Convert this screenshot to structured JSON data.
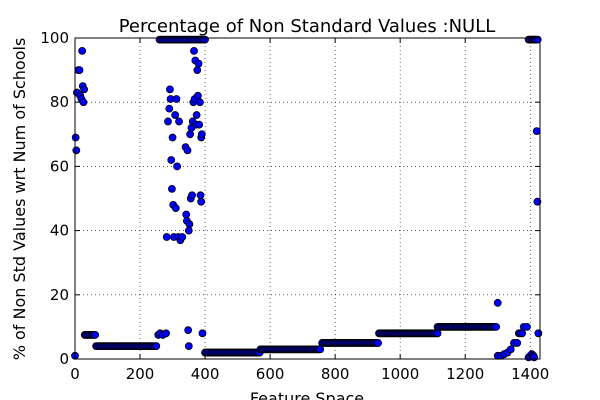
{
  "chart_data": {
    "type": "scatter",
    "title": "Percentage of Non Standard Values :NULL",
    "xlabel": "Feature Space",
    "ylabel": "% of Non Std Values wrt Num of Schools",
    "xlim": [
      0,
      1430
    ],
    "ylim": [
      0,
      100
    ],
    "xticks": [
      "0",
      "200",
      "400",
      "600",
      "800",
      "1000",
      "1200",
      "1400"
    ],
    "xtick_values": [
      0,
      200,
      400,
      600,
      800,
      1000,
      1200,
      1400
    ],
    "yticks": [
      "0",
      "20",
      "40",
      "60",
      "80",
      "100"
    ],
    "ytick_values": [
      0,
      20,
      40,
      60,
      80,
      100
    ],
    "grid": true,
    "marker_color": "#0000ff",
    "segments": [
      {
        "x_start": 65,
        "x_end": 250,
        "y": 4,
        "step": 4
      },
      {
        "x_start": 400,
        "x_end": 570,
        "y": 2,
        "step": 4
      },
      {
        "x_start": 570,
        "x_end": 755,
        "y": 3,
        "step": 4
      },
      {
        "x_start": 760,
        "x_end": 935,
        "y": 5,
        "step": 4
      },
      {
        "x_start": 935,
        "x_end": 1115,
        "y": 8,
        "step": 4
      },
      {
        "x_start": 1115,
        "x_end": 1295,
        "y": 10,
        "step": 4
      },
      {
        "x_start": 30,
        "x_end": 65,
        "y": 7.5,
        "step": 4
      },
      {
        "x_start": 260,
        "x_end": 400,
        "y": 99.5,
        "step": 5
      },
      {
        "x_start": 1395,
        "x_end": 1425,
        "y": 99.5,
        "step": 4
      }
    ],
    "points": [
      [
        0,
        1
      ],
      [
        2,
        69
      ],
      [
        4,
        65
      ],
      [
        6,
        83
      ],
      [
        10,
        90
      ],
      [
        14,
        90
      ],
      [
        16,
        82
      ],
      [
        20,
        81
      ],
      [
        22,
        96
      ],
      [
        24,
        85
      ],
      [
        26,
        80
      ],
      [
        28,
        84
      ],
      [
        250,
        4
      ],
      [
        256,
        7.5
      ],
      [
        262,
        8
      ],
      [
        270,
        7.5
      ],
      [
        280,
        8
      ],
      [
        282,
        38
      ],
      [
        286,
        74
      ],
      [
        290,
        78
      ],
      [
        292,
        84
      ],
      [
        294,
        81
      ],
      [
        296,
        62
      ],
      [
        298,
        53
      ],
      [
        300,
        69
      ],
      [
        302,
        48
      ],
      [
        304,
        38
      ],
      [
        308,
        76
      ],
      [
        310,
        47
      ],
      [
        312,
        81
      ],
      [
        314,
        60
      ],
      [
        318,
        38
      ],
      [
        320,
        74
      ],
      [
        324,
        37
      ],
      [
        330,
        38
      ],
      [
        340,
        66
      ],
      [
        342,
        45
      ],
      [
        344,
        43
      ],
      [
        346,
        65
      ],
      [
        348,
        9
      ],
      [
        350,
        4
      ],
      [
        350,
        40
      ],
      [
        352,
        42
      ],
      [
        354,
        70
      ],
      [
        356,
        50
      ],
      [
        358,
        72
      ],
      [
        360,
        51
      ],
      [
        362,
        74
      ],
      [
        364,
        80
      ],
      [
        366,
        96
      ],
      [
        368,
        81
      ],
      [
        370,
        93
      ],
      [
        372,
        73
      ],
      [
        374,
        76
      ],
      [
        376,
        90
      ],
      [
        378,
        82
      ],
      [
        380,
        92
      ],
      [
        382,
        73
      ],
      [
        384,
        80
      ],
      [
        386,
        51
      ],
      [
        388,
        49
      ],
      [
        388,
        69
      ],
      [
        390,
        70
      ],
      [
        392,
        8
      ],
      [
        1300,
        17.5
      ],
      [
        1300,
        1
      ],
      [
        1310,
        1
      ],
      [
        1320,
        1.5
      ],
      [
        1330,
        2
      ],
      [
        1340,
        3
      ],
      [
        1350,
        5
      ],
      [
        1360,
        5
      ],
      [
        1365,
        8
      ],
      [
        1370,
        8
      ],
      [
        1375,
        8
      ],
      [
        1380,
        10
      ],
      [
        1390,
        10
      ],
      [
        1395,
        0.5
      ],
      [
        1400,
        1
      ],
      [
        1405,
        1.5
      ],
      [
        1410,
        1
      ],
      [
        1412,
        0.5
      ],
      [
        1420,
        71
      ],
      [
        1422,
        49
      ],
      [
        1425,
        8
      ]
    ]
  }
}
